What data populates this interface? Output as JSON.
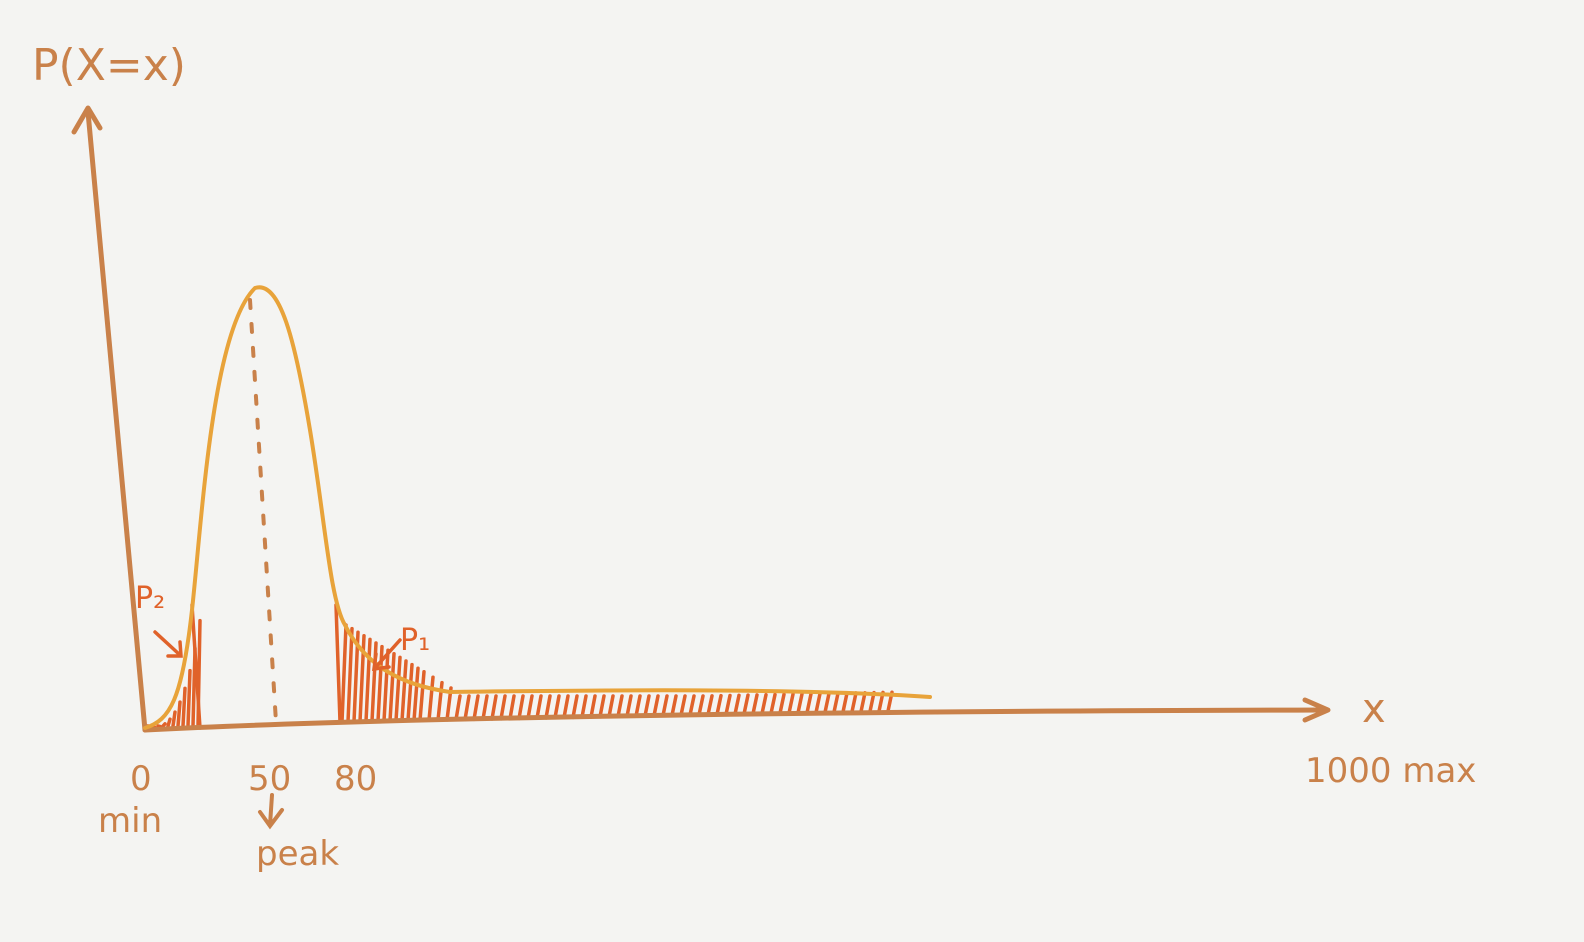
{
  "y_axis_label": "P(X=x)",
  "x_axis_label": "x",
  "x_labels": [
    {
      "value": "0",
      "note": "min"
    },
    {
      "value": "50",
      "note": "peak"
    },
    {
      "value": "80"
    },
    {
      "value": "1000 max"
    }
  ],
  "regions": [
    "P₂",
    "P₁"
  ]
}
